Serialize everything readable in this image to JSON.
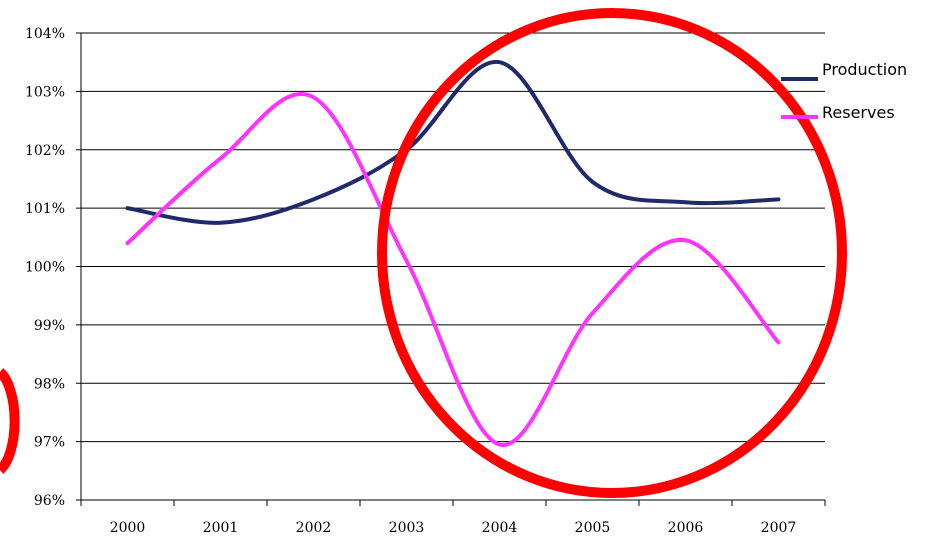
{
  "chart_data": {
    "type": "line",
    "categories": [
      "2000",
      "2001",
      "2002",
      "2003",
      "2004",
      "2005",
      "2006",
      "2007"
    ],
    "series": [
      {
        "name": "Production",
        "color": "#1f2a6b",
        "values": [
          101.0,
          100.75,
          101.15,
          102.0,
          103.5,
          101.45,
          101.1,
          101.15
        ]
      },
      {
        "name": "Reserves",
        "color": "#ff33ff",
        "values": [
          100.4,
          101.85,
          102.9,
          100.1,
          96.95,
          99.2,
          100.45,
          98.7
        ]
      }
    ],
    "yticks": [
      "96%",
      "97%",
      "98%",
      "99%",
      "100%",
      "101%",
      "102%",
      "103%",
      "104%"
    ],
    "ylim": [
      96,
      104
    ],
    "grid": true,
    "legend_position": "top-right",
    "annotations": [
      {
        "type": "circle",
        "color": "#ff0000",
        "description": "red circle highlighting 2003-2007"
      },
      {
        "type": "arc",
        "color": "#ff0000",
        "description": "partial red circle at left edge"
      }
    ]
  }
}
